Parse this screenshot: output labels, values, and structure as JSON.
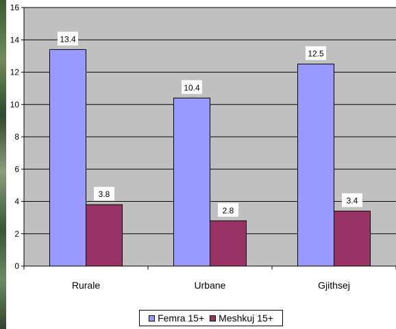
{
  "chart_data": {
    "type": "bar",
    "categories": [
      "Rurale",
      "Urbane",
      "Gjithsej"
    ],
    "series": [
      {
        "name": "Femra 15+",
        "values": [
          13.4,
          10.4,
          12.5
        ],
        "color": "#9999ff"
      },
      {
        "name": "Meshkuj 15+",
        "values": [
          3.8,
          2.8,
          3.4
        ],
        "color": "#993366"
      }
    ],
    "ylim": [
      0,
      16
    ],
    "yticks": [
      "0",
      "2",
      "4",
      "6",
      "8",
      "10",
      "12",
      "14",
      "16"
    ],
    "plot_background": "#c0c0c0",
    "grid": true,
    "legend_position": "bottom",
    "data_labels": true
  }
}
